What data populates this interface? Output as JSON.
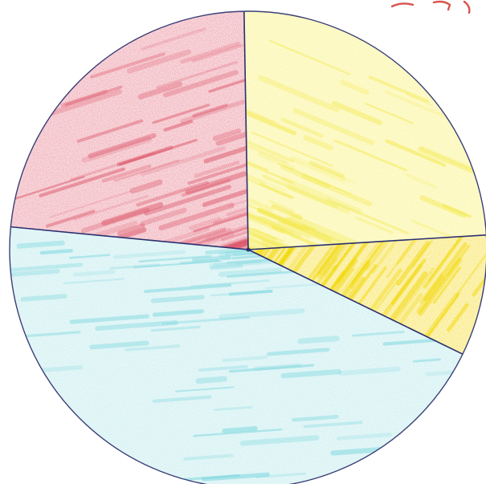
{
  "chart_data": {
    "type": "pie",
    "title": "",
    "start_angle_deg": -91,
    "direction": "clockwise",
    "slices": [
      {
        "value": 24.3,
        "color": "#fbf58e",
        "stroke_color": "#f3e84a"
      },
      {
        "value": 8.2,
        "color": "#f9e623",
        "stroke_color": "#f1d700"
      },
      {
        "value": 44.3,
        "color": "#c8eef0",
        "stroke_color": "#79d6de"
      },
      {
        "value": 23.2,
        "color": "#ef9fac",
        "stroke_color": "#dc5468"
      }
    ],
    "outline_color": "#2a2f6e",
    "legend": false
  }
}
